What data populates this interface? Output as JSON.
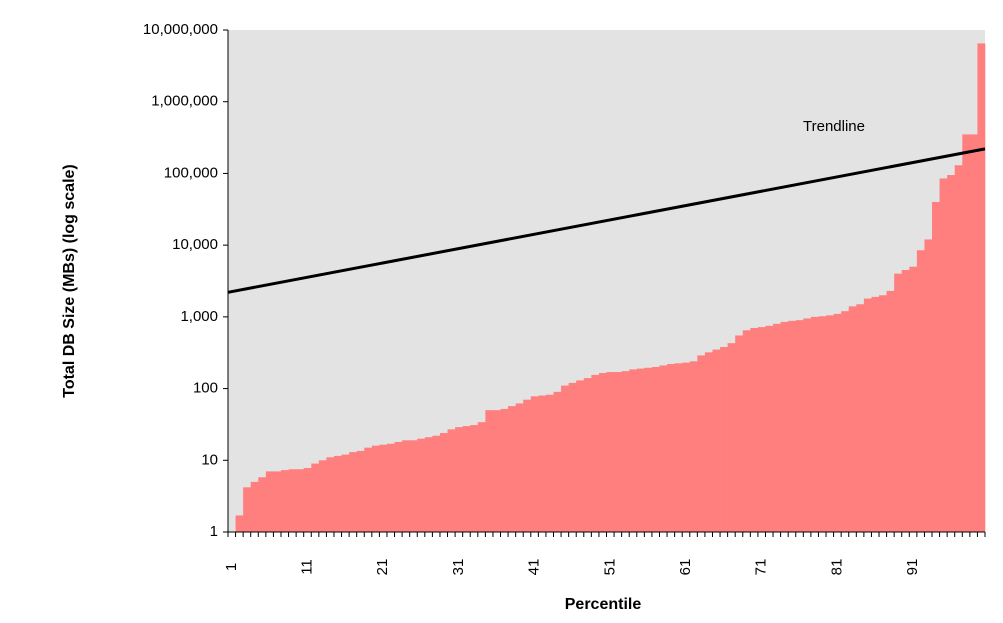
{
  "chart_data": {
    "type": "bar",
    "y_label": "Total DB Size (MBs) (log scale)",
    "x_label": "Percentile",
    "annotation": "Trendline",
    "color": "#ff7f7f",
    "log_y": true,
    "categories": [
      1,
      null,
      null,
      null,
      null,
      null,
      null,
      null,
      null,
      null,
      11,
      null,
      null,
      null,
      null,
      null,
      null,
      null,
      null,
      null,
      21,
      null,
      null,
      null,
      null,
      null,
      null,
      null,
      null,
      null,
      31,
      null,
      null,
      null,
      null,
      null,
      null,
      null,
      null,
      null,
      41,
      null,
      null,
      null,
      null,
      null,
      null,
      null,
      null,
      null,
      51,
      null,
      null,
      null,
      null,
      null,
      null,
      null,
      null,
      null,
      61,
      null,
      null,
      null,
      null,
      null,
      null,
      null,
      null,
      null,
      71,
      null,
      null,
      null,
      null,
      null,
      null,
      null,
      null,
      null,
      81,
      null,
      null,
      null,
      null,
      null,
      null,
      null,
      null,
      null,
      91,
      null,
      null,
      null,
      null,
      null,
      null,
      null,
      null,
      null
    ],
    "values": [
      1,
      1.7,
      4.2,
      5,
      5.8,
      7,
      7,
      7.3,
      7.5,
      7.5,
      7.8,
      9,
      10,
      11,
      11.5,
      12,
      13,
      13.5,
      15,
      16,
      16.5,
      17,
      18,
      19,
      19,
      20,
      21,
      22,
      24,
      27,
      29,
      30,
      31,
      34,
      50,
      50,
      52,
      57,
      62,
      70,
      78,
      80,
      82,
      90,
      110,
      120,
      130,
      140,
      155,
      165,
      170,
      170,
      175,
      185,
      190,
      195,
      200,
      210,
      220,
      225,
      230,
      240,
      290,
      320,
      350,
      380,
      430,
      550,
      650,
      700,
      720,
      750,
      800,
      850,
      880,
      900,
      950,
      1000,
      1020,
      1050,
      1100,
      1200,
      1400,
      1500,
      1800,
      1900,
      2000,
      2300,
      4000,
      4500,
      5000,
      8500,
      12000,
      40000,
      85000,
      95000,
      130000,
      350000,
      350000,
      6500000
    ],
    "trendline": {
      "color": "#000000",
      "values": [
        2200,
        220000
      ]
    },
    "ylim": [
      1,
      10000000
    ],
    "yticks": [
      1,
      10,
      100,
      {
        "value": 1000,
        "label": "1,000"
      },
      {
        "value": 10000,
        "label": "10,000"
      },
      {
        "value": 100000,
        "label": "100,000"
      },
      {
        "value": 1000000,
        "label": "1,000,000"
      },
      {
        "value": 10000000,
        "label": "10,000,000"
      }
    ]
  }
}
